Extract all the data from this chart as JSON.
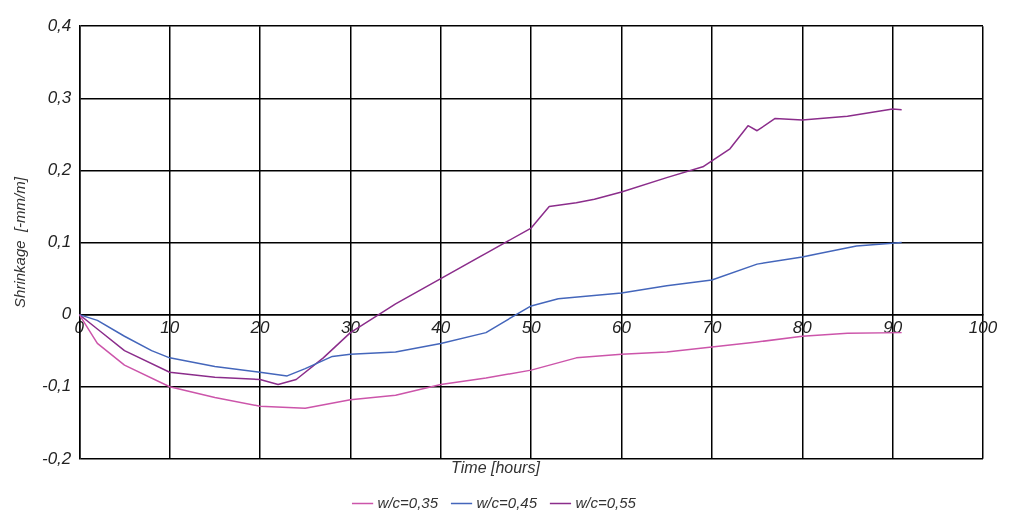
{
  "chart_data": {
    "type": "line",
    "xlabel": "Time [hours]",
    "ylabel": "Shrinkage  [-mm/m]",
    "xlim": [
      0,
      100
    ],
    "xticks": [
      0,
      10,
      20,
      30,
      40,
      50,
      60,
      70,
      80,
      90,
      100
    ],
    "ylim": [
      -0.2,
      0.4
    ],
    "yticks": [
      {
        "value": -0.2,
        "label": "-0,2"
      },
      {
        "value": -0.1,
        "label": "-0,1"
      },
      {
        "value": 0,
        "label": "0"
      },
      {
        "value": 0.1,
        "label": "0,1"
      },
      {
        "value": 0.2,
        "label": "0,2"
      },
      {
        "value": 0.3,
        "label": "0,3"
      },
      {
        "value": 0.4,
        "label": "0,4"
      }
    ],
    "grid": true,
    "legend": "bottom",
    "marker": "none",
    "line_style": "solid",
    "series": [
      {
        "name": "w/c=0,35",
        "color": "#cc55aa",
        "x": [
          0,
          2,
          5,
          10,
          15,
          20,
          25,
          30,
          35,
          40,
          45,
          50,
          55,
          60,
          65,
          70,
          75,
          80,
          85,
          91
        ],
        "values": [
          0,
          -0.04,
          -0.07,
          -0.1,
          -0.115,
          -0.127,
          -0.13,
          -0.118,
          -0.112,
          -0.097,
          -0.088,
          -0.077,
          -0.06,
          -0.055,
          -0.052,
          -0.045,
          -0.038,
          -0.03,
          -0.026,
          -0.025
        ]
      },
      {
        "name": "w/c=0,45",
        "color": "#4466bb",
        "x": [
          0,
          2,
          5,
          8,
          10,
          15,
          20,
          23,
          25,
          28,
          30,
          35,
          40,
          45,
          47,
          50,
          53,
          60,
          65,
          70,
          75,
          80,
          86,
          91
        ],
        "values": [
          0,
          -0.008,
          -0.03,
          -0.05,
          -0.06,
          -0.072,
          -0.08,
          -0.085,
          -0.075,
          -0.058,
          -0.055,
          -0.052,
          -0.04,
          -0.025,
          -0.01,
          0.012,
          0.022,
          0.03,
          0.04,
          0.048,
          0.07,
          0.08,
          0.095,
          0.1
        ]
      },
      {
        "name": "w/c=0,55",
        "color": "#8b2d8b",
        "x": [
          0,
          2,
          5,
          10,
          15,
          20,
          22,
          24,
          27,
          30,
          35,
          40,
          45,
          50,
          52,
          55,
          57,
          60,
          65,
          69,
          72,
          74,
          75,
          77,
          80,
          85,
          90,
          91
        ],
        "values": [
          0,
          -0.02,
          -0.05,
          -0.08,
          -0.087,
          -0.09,
          -0.097,
          -0.09,
          -0.06,
          -0.025,
          0.015,
          0.05,
          0.085,
          0.12,
          0.15,
          0.155,
          0.16,
          0.17,
          0.19,
          0.205,
          0.23,
          0.262,
          0.255,
          0.272,
          0.27,
          0.275,
          0.285,
          0.284
        ]
      }
    ]
  }
}
